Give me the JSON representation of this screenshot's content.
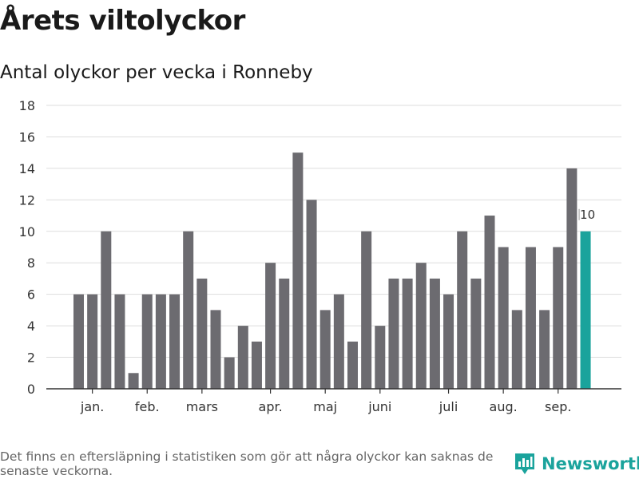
{
  "header": {
    "title": "Årets viltolyckor",
    "subtitle": "Antal olyckor per vecka i Ronneby"
  },
  "chart_data": {
    "type": "bar",
    "title": "Årets viltolyckor",
    "subtitle": "Antal olyckor per vecka i Ronneby",
    "xlabel": "",
    "ylabel": "",
    "ylim": [
      0,
      18
    ],
    "yticks": [
      0,
      2,
      4,
      6,
      8,
      10,
      12,
      14,
      16,
      18
    ],
    "grid": true,
    "month_labels": [
      {
        "label": "jan.",
        "at_bar": 1
      },
      {
        "label": "feb.",
        "at_bar": 5
      },
      {
        "label": "mars",
        "at_bar": 9
      },
      {
        "label": "apr.",
        "at_bar": 14
      },
      {
        "label": "maj",
        "at_bar": 18
      },
      {
        "label": "juni",
        "at_bar": 22
      },
      {
        "label": "juli",
        "at_bar": 27
      },
      {
        "label": "aug.",
        "at_bar": 31
      },
      {
        "label": "sep.",
        "at_bar": 35
      }
    ],
    "series": [
      {
        "name": "Antal olyckor",
        "values": [
          6,
          6,
          10,
          6,
          1,
          6,
          6,
          6,
          10,
          7,
          5,
          2,
          4,
          3,
          8,
          7,
          15,
          12,
          5,
          6,
          3,
          10,
          4,
          7,
          7,
          8,
          7,
          6,
          10,
          7,
          11,
          9,
          5,
          9,
          5,
          9,
          14,
          10
        ]
      }
    ],
    "highlight": {
      "index": 37,
      "label": "10"
    },
    "colors": {
      "bar": "#6c6b70",
      "highlight": "#1aa39c",
      "grid": "#dddddd",
      "axis": "#333333"
    }
  },
  "footer": {
    "note": "Det finns en eftersläpning i statistiken som gör att några olyckor kan saknas de senaste veckorna.",
    "brand": "Newsworthy"
  }
}
